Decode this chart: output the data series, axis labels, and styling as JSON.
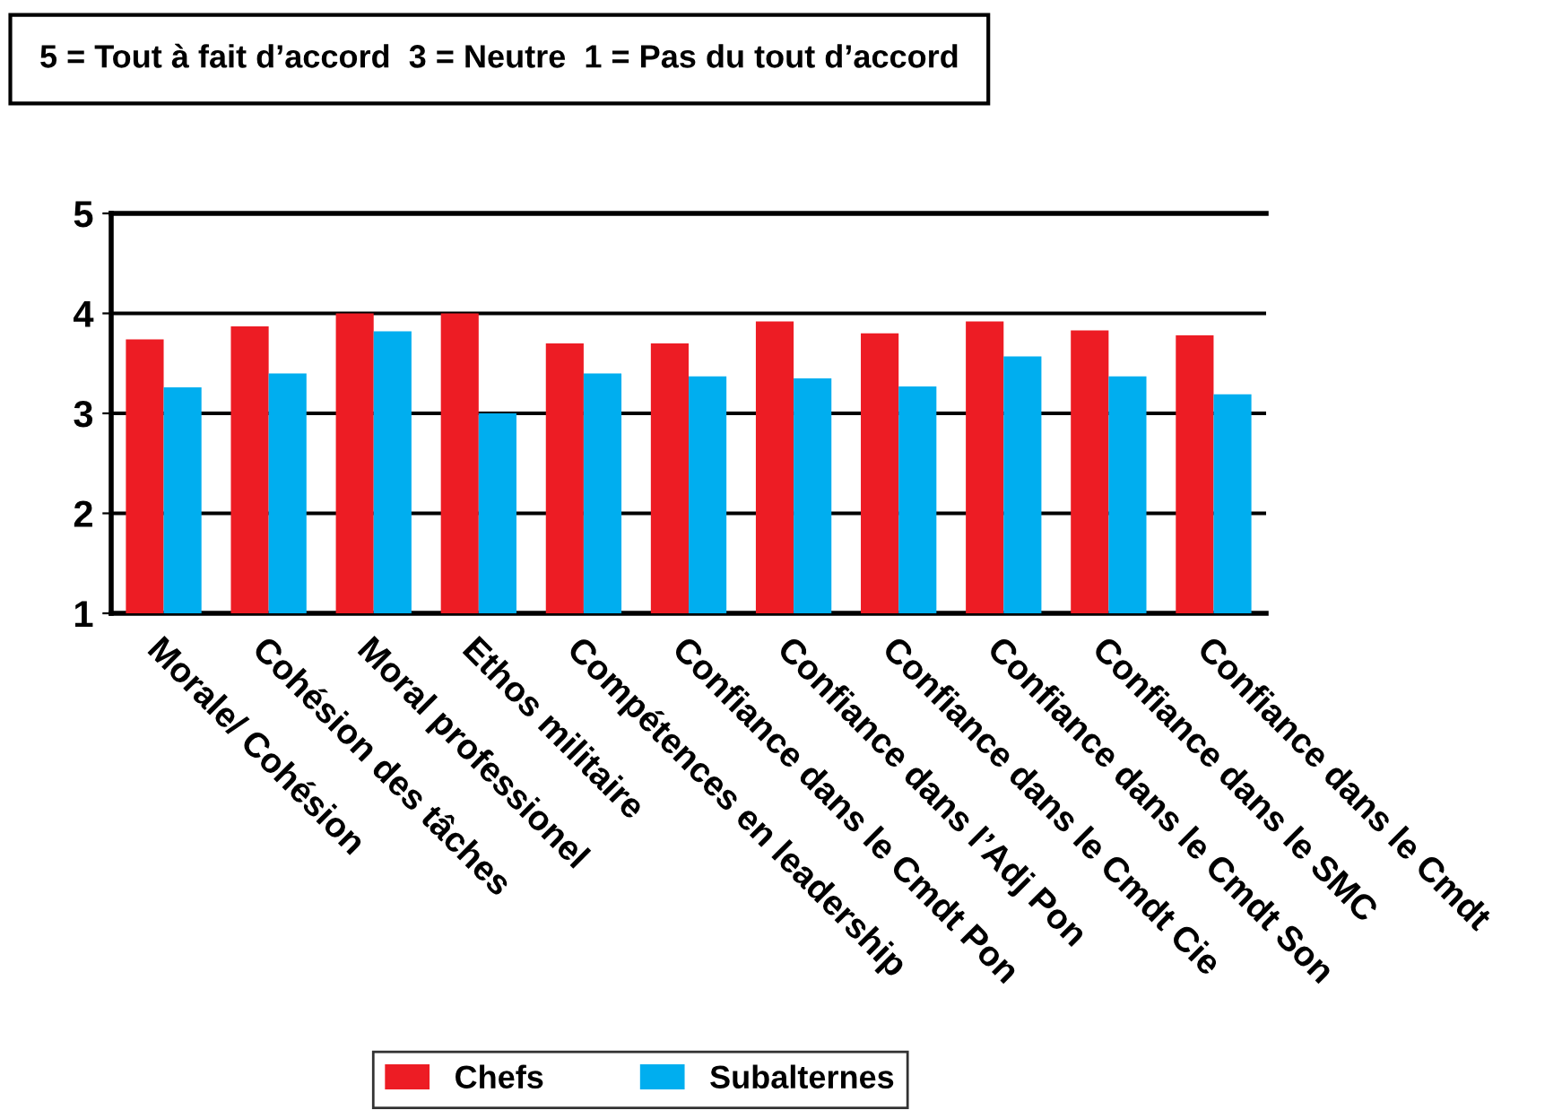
{
  "chart_data": {
    "type": "bar",
    "annotations": [
      "5 = Tout à fait d’accord  3 = Neutre  1 = Pas du tout d’accord"
    ],
    "categories": [
      "Morale/ Cohésion",
      "Cohésion des tâches",
      "Moral professionel",
      "Ethos militaire",
      "Compétences en leadership",
      "Confiance dans le Cmdt Pon",
      "Confiance dans l’Adj Pon",
      "Confiance dans le Cmdt Cie",
      "Confiance dans le Cmdt Son",
      "Confiance dans le SMC",
      "Confiance dans le Cmdt"
    ],
    "series": [
      {
        "name": "Chefs",
        "color": "#ed1c24",
        "values": [
          3.74,
          3.87,
          4.0,
          4.0,
          3.7,
          3.7,
          3.92,
          3.8,
          3.92,
          3.83,
          3.78
        ]
      },
      {
        "name": "Subalternes",
        "color": "#00aeef",
        "values": [
          3.26,
          3.4,
          3.82,
          3.0,
          3.4,
          3.37,
          3.35,
          3.27,
          3.57,
          3.37,
          3.19
        ]
      }
    ],
    "ylim": [
      1,
      5
    ],
    "yticks": [
      1,
      2,
      3,
      4,
      5
    ],
    "grid": "y",
    "legend": "bottom"
  }
}
